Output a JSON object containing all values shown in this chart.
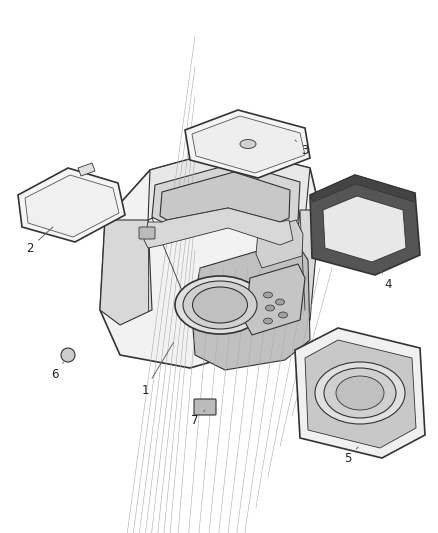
{
  "background_color": "#ffffff",
  "fig_width": 4.38,
  "fig_height": 5.33,
  "dpi": 100,
  "line_color": "#333333",
  "label_color": "#222222",
  "label_fontsize": 8.5,
  "hatch_color": "#888888"
}
